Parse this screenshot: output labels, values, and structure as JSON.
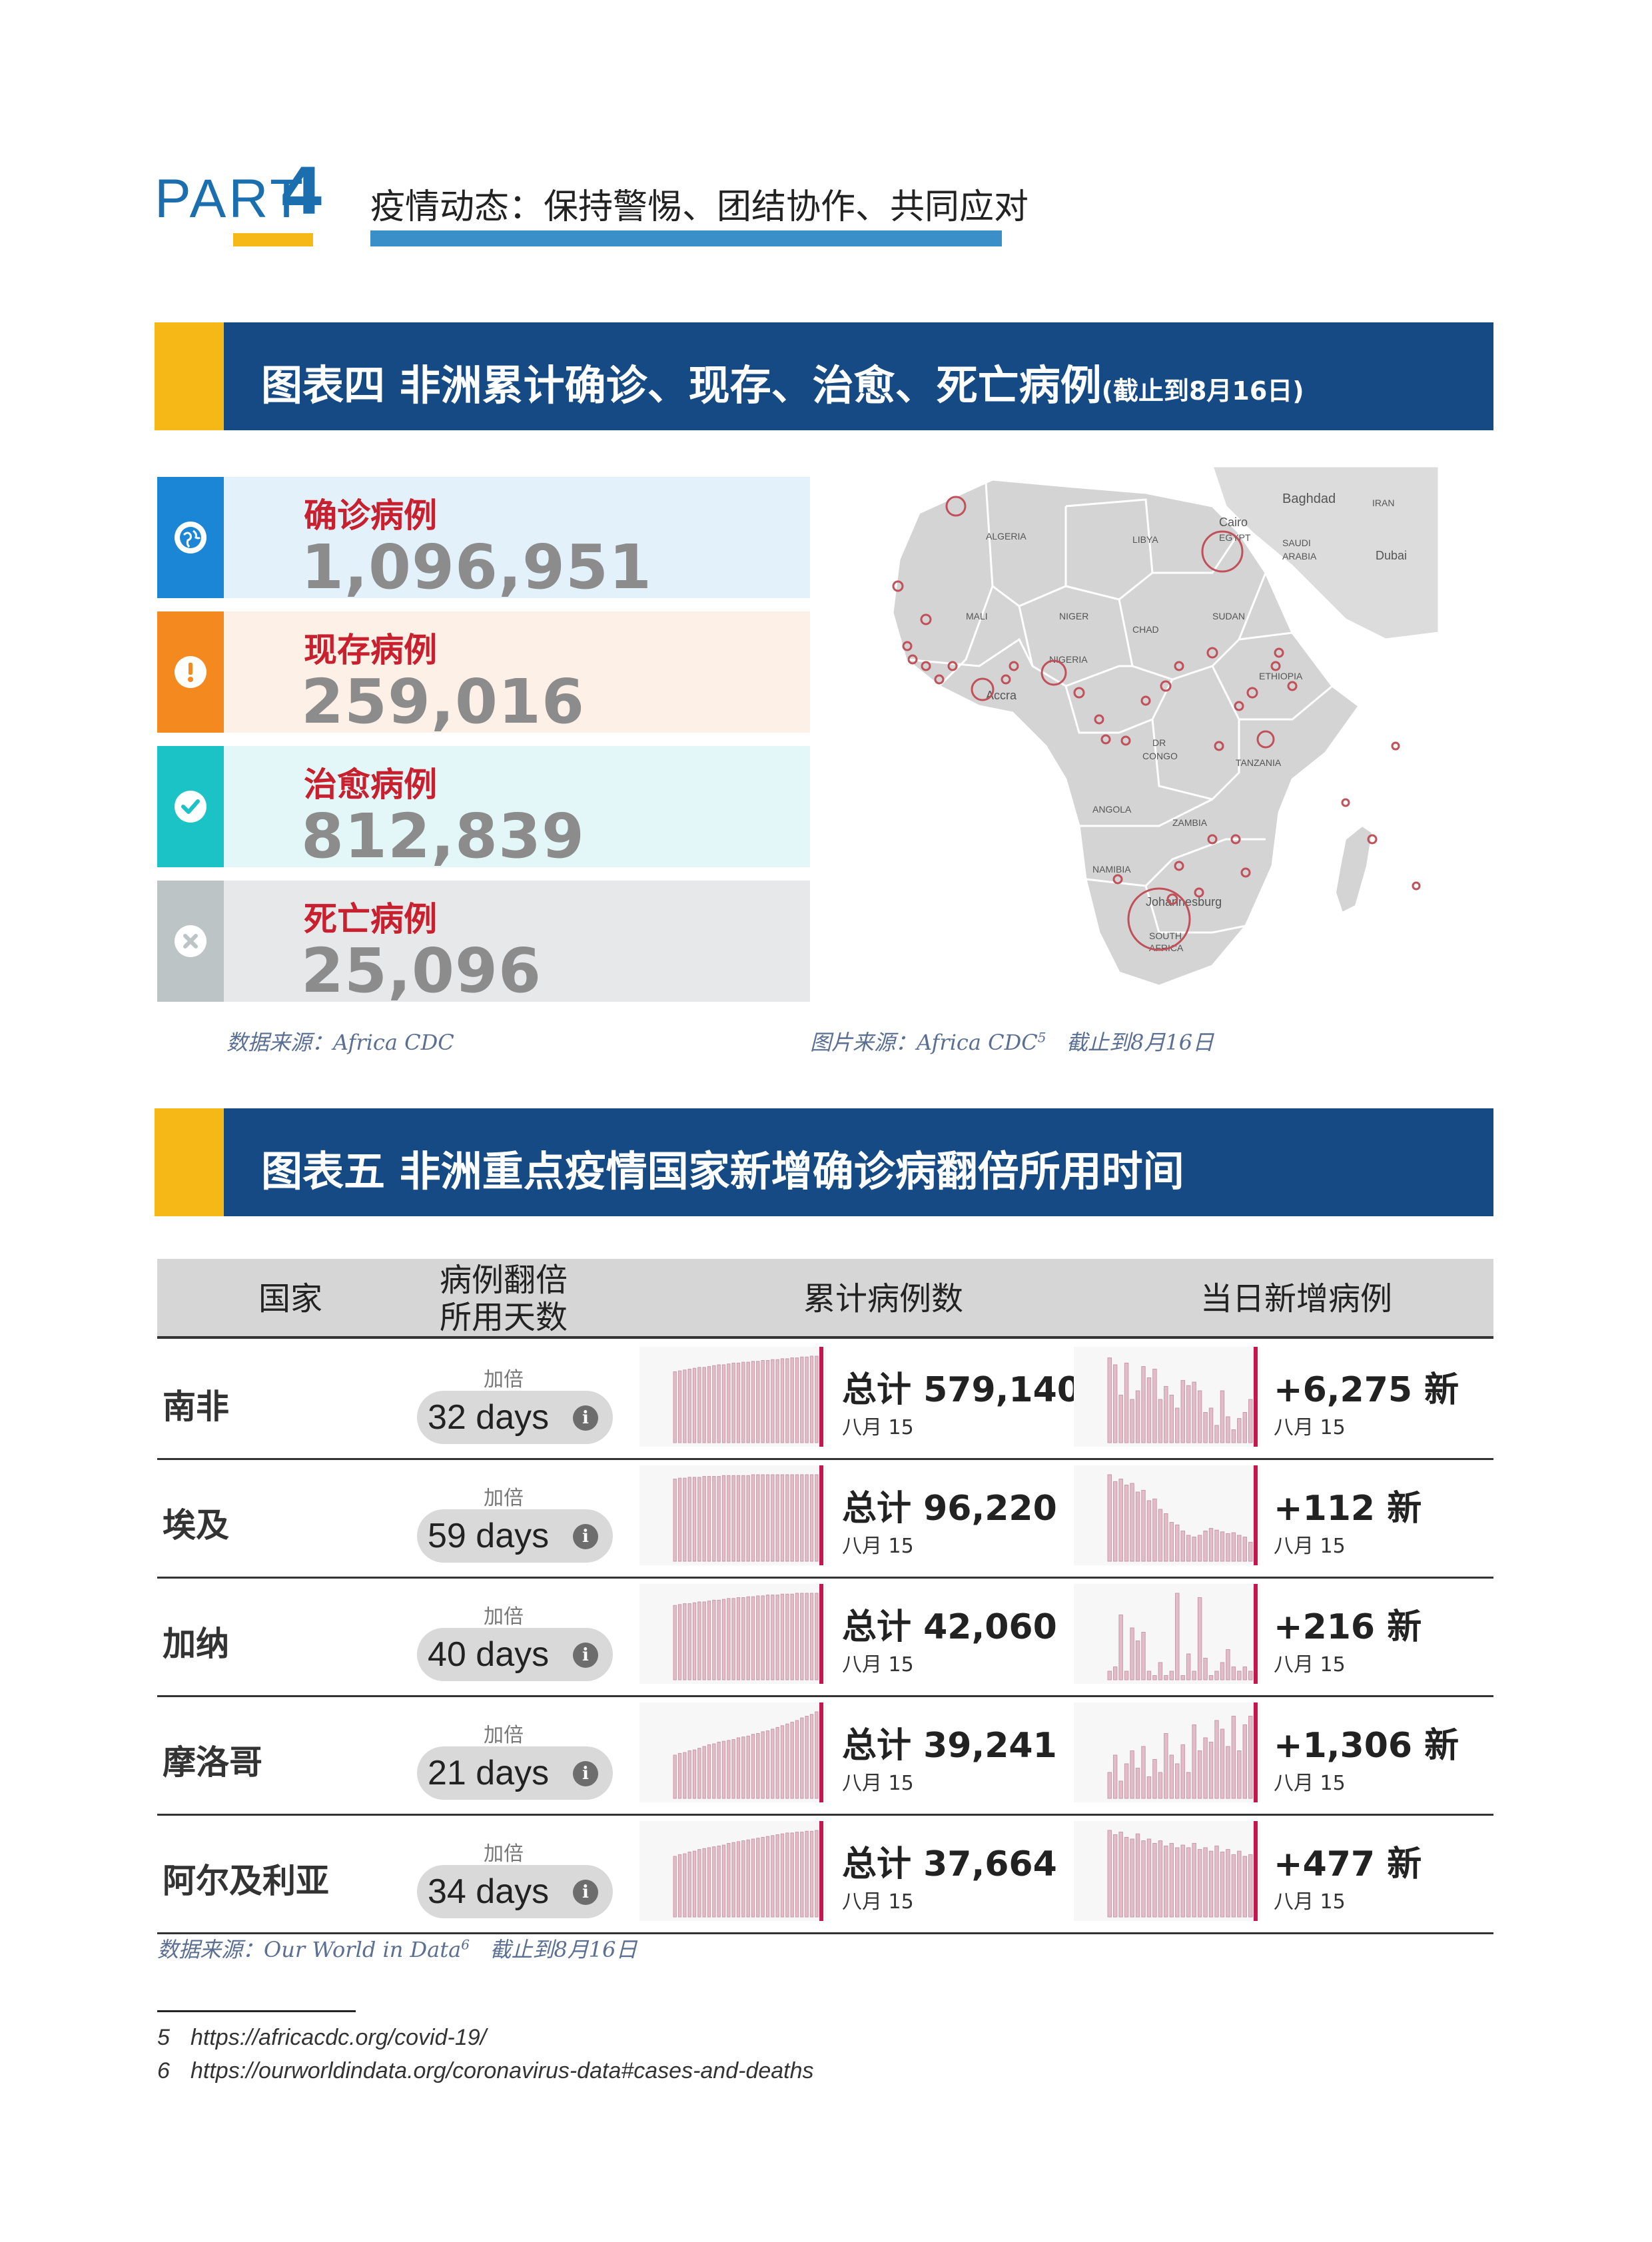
{
  "header": {
    "part_word": "PART",
    "part_num": "4",
    "title": "疫情动态：保持警惕、团结协作、共同应对"
  },
  "fig4": {
    "title": "图表四 非洲累计确诊、现存、治愈、死亡病例",
    "subtitle": "(截止到8月16日)",
    "cards": [
      {
        "label": "确诊病例",
        "value": "1,096,951",
        "icon": "globe-icon",
        "color": "#1c86d6",
        "bg": "#e3f1fa"
      },
      {
        "label": "现存病例",
        "value": "259,016",
        "icon": "alert-icon",
        "color": "#f4891f",
        "bg": "#fdf1e7"
      },
      {
        "label": "治愈病例",
        "value": "812,839",
        "icon": "check-icon",
        "color": "#1cc3c6",
        "bg": "#e3f7f8"
      },
      {
        "label": "死亡病例",
        "value": "25,096",
        "icon": "cross-icon",
        "color": "#bcc4c6",
        "bg": "#e7e8ea"
      }
    ],
    "data_source": "数据来源：Africa CDC",
    "image_source": "图片来源：Africa CDC",
    "image_source_sup": "5",
    "image_source_date": "截止到8月16日",
    "map_labels": {
      "baghdad": "Baghdad",
      "iran": "IRAN",
      "cairo": "Cairo",
      "egypt": "EGYPT",
      "saudi": "SAUDI",
      "arabia": "ARABIA",
      "dubai": "Dubai",
      "libya": "LIBYA",
      "algeria": "ALGERIA",
      "mali": "MALI",
      "niger": "NIGER",
      "chad": "CHAD",
      "sudan": "SUDAN",
      "nigeria": "NIGERIA",
      "ethiopia": "ETHIOPIA",
      "accra": "Accra",
      "dr": "DR",
      "congo": "CONGO",
      "tanzania": "TANZANIA",
      "angola": "ANGOLA",
      "zambia": "ZAMBIA",
      "namibia": "NAMIBIA",
      "johannesburg": "Johannesburg",
      "south": "SOUTH",
      "africa": "AFRICA"
    }
  },
  "fig5": {
    "title": "图表五 非洲重点疫情国家新增确诊病翻倍所用时间",
    "headers": {
      "country": "国家",
      "days_1": "病例翻倍",
      "days_2": "所用天数",
      "total": "累计病例数",
      "daily": "当日新增病例"
    },
    "rows": [
      {
        "country": "南非",
        "dbl_label": "加倍",
        "days": "32 days",
        "total": "总计 579,140",
        "total_date": "八月 15",
        "new": "+6,275 新",
        "new_date": "八月 15",
        "cum_trend": [
          0.82,
          0.83,
          0.84,
          0.85,
          0.86,
          0.87,
          0.87,
          0.88,
          0.89,
          0.9,
          0.9,
          0.91,
          0.92,
          0.92,
          0.93,
          0.93,
          0.94,
          0.94,
          0.95,
          0.95,
          0.96,
          0.96,
          0.97,
          0.97,
          0.98,
          0.98,
          0.99,
          0.99,
          1.0,
          1.0
        ],
        "daily_trend": [
          0.98,
          0.9,
          0.55,
          0.92,
          0.5,
          0.6,
          0.88,
          0.75,
          0.85,
          0.5,
          0.65,
          0.55,
          0.4,
          0.72,
          0.66,
          0.7,
          0.6,
          0.35,
          0.4,
          0.2,
          0.6,
          0.3,
          0.15,
          0.28,
          0.35,
          0.5
        ]
      },
      {
        "country": "埃及",
        "dbl_label": "加倍",
        "days": "59 days",
        "total": "总计 96,220",
        "total_date": "八月 15",
        "new": "+112 新",
        "new_date": "八月 15",
        "cum_trend": [
          0.95,
          0.96,
          0.96,
          0.97,
          0.97,
          0.97,
          0.98,
          0.98,
          0.98,
          0.98,
          0.99,
          0.99,
          0.99,
          0.99,
          0.99,
          0.99,
          1.0,
          1.0,
          1.0,
          1.0,
          1.0,
          1.0,
          1.0,
          1.0,
          1.0,
          1.0,
          1.0,
          1.0,
          1.0,
          1.0
        ],
        "daily_trend": [
          1.0,
          0.92,
          0.95,
          0.88,
          0.9,
          0.8,
          0.82,
          0.7,
          0.72,
          0.6,
          0.55,
          0.45,
          0.42,
          0.35,
          0.3,
          0.28,
          0.3,
          0.35,
          0.38,
          0.36,
          0.34,
          0.32,
          0.33,
          0.3,
          0.28,
          0.22
        ]
      },
      {
        "country": "加纳",
        "dbl_label": "加倍",
        "days": "40 days",
        "total": "总计 42,060",
        "total_date": "八月 15",
        "new": "+216 新",
        "new_date": "八月 15",
        "cum_trend": [
          0.86,
          0.87,
          0.88,
          0.88,
          0.89,
          0.9,
          0.9,
          0.91,
          0.92,
          0.92,
          0.93,
          0.94,
          0.94,
          0.95,
          0.95,
          0.96,
          0.96,
          0.97,
          0.97,
          0.98,
          0.98,
          0.98,
          0.99,
          0.99,
          0.99,
          1.0,
          1.0,
          1.0,
          1.0,
          1.0
        ],
        "daily_trend": [
          0.1,
          0.15,
          0.75,
          0.1,
          0.6,
          0.45,
          0.55,
          0.1,
          0.05,
          0.2,
          0.05,
          0.1,
          1.0,
          0.05,
          0.3,
          0.1,
          0.95,
          0.25,
          0.05,
          0.1,
          0.2,
          0.35,
          0.15,
          0.1,
          0.15,
          0.1
        ]
      },
      {
        "country": "摩洛哥",
        "dbl_label": "加倍",
        "days": "21 days",
        "total": "总计 39,241",
        "total_date": "八月 15",
        "new": "+1,306 新",
        "new_date": "八月 15",
        "cum_trend": [
          0.5,
          0.52,
          0.53,
          0.55,
          0.56,
          0.58,
          0.6,
          0.62,
          0.63,
          0.65,
          0.66,
          0.67,
          0.68,
          0.7,
          0.71,
          0.72,
          0.74,
          0.75,
          0.77,
          0.78,
          0.8,
          0.82,
          0.84,
          0.86,
          0.88,
          0.9,
          0.93,
          0.95,
          0.97,
          1.0
        ],
        "daily_trend": [
          0.3,
          0.5,
          0.2,
          0.4,
          0.55,
          0.35,
          0.6,
          0.25,
          0.45,
          0.3,
          0.75,
          0.5,
          0.4,
          0.62,
          0.3,
          0.85,
          0.55,
          0.7,
          0.65,
          0.9,
          0.8,
          0.6,
          0.95,
          0.55,
          0.85,
          0.95
        ]
      },
      {
        "country": "阿尔及利亚",
        "dbl_label": "加倍",
        "days": "34 days",
        "total": "总计 37,664",
        "total_date": "八月 15",
        "new": "+477 新",
        "new_date": "八月 15",
        "cum_trend": [
          0.7,
          0.72,
          0.73,
          0.75,
          0.76,
          0.78,
          0.79,
          0.8,
          0.81,
          0.82,
          0.83,
          0.85,
          0.86,
          0.87,
          0.88,
          0.89,
          0.9,
          0.91,
          0.92,
          0.93,
          0.94,
          0.95,
          0.96,
          0.97,
          0.97,
          0.98,
          0.98,
          0.99,
          0.99,
          1.0
        ],
        "daily_trend": [
          1.0,
          0.95,
          0.98,
          0.92,
          0.9,
          0.96,
          0.88,
          0.9,
          0.85,
          0.88,
          0.82,
          0.85,
          0.8,
          0.83,
          0.8,
          0.85,
          0.78,
          0.8,
          0.76,
          0.82,
          0.75,
          0.78,
          0.72,
          0.76,
          0.7,
          0.72
        ]
      }
    ],
    "data_source": "数据来源：Our World in Data",
    "data_source_sup": "6",
    "data_source_date": "截止到8月16日"
  },
  "footnotes": [
    {
      "num": "5",
      "text": "https://africacdc.org/covid-19/"
    },
    {
      "num": "6",
      "text": "https://ourworldindata.org/coronavirus-data#cases-and-deaths"
    }
  ],
  "colors": {
    "navy": "#154a85",
    "yellow": "#f6b817",
    "blue": "#3a8fc8",
    "red": "#c8202e",
    "bar": "#e2bcc8",
    "bar_hl": "#c4174f"
  }
}
